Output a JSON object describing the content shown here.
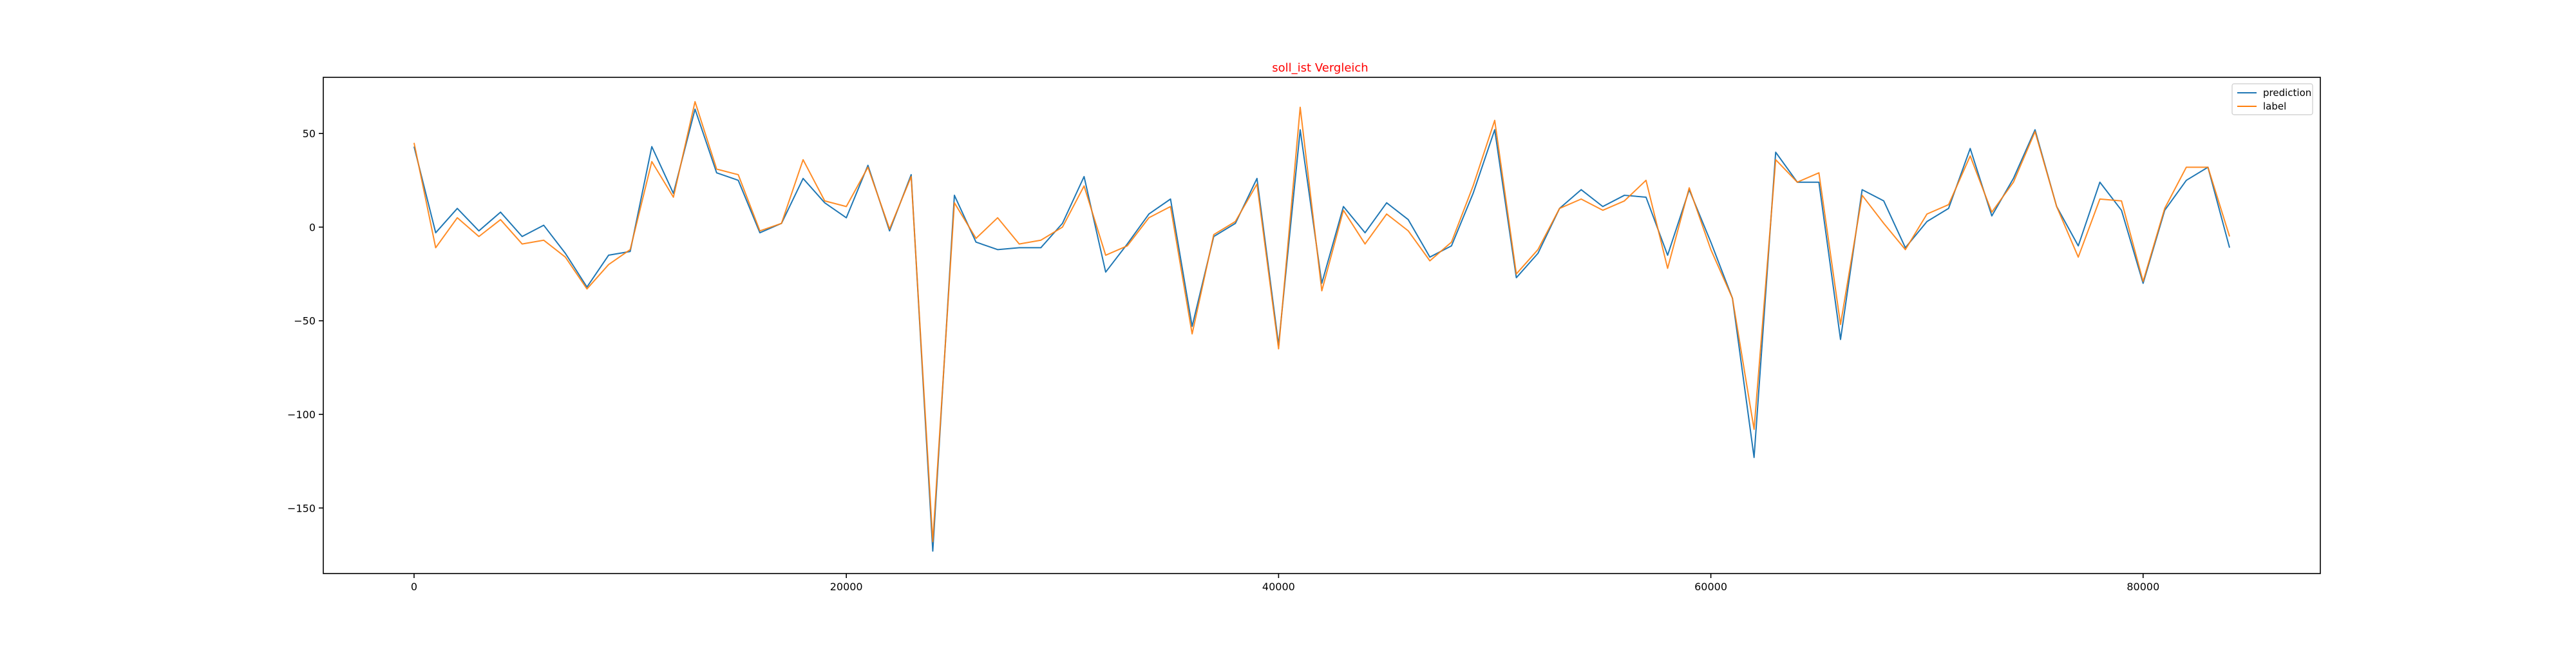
{
  "chart_data": {
    "type": "line",
    "title": "soll_ist Vergleich",
    "title_color": "#ff0000",
    "xlabel": "",
    "ylabel": "",
    "xlim": [
      -4200,
      88200
    ],
    "ylim": [
      -185,
      80
    ],
    "xticks": [
      0,
      20000,
      40000,
      60000,
      80000
    ],
    "yticks": [
      50,
      0,
      -50,
      -100,
      -150
    ],
    "ytick_labels": [
      "50",
      "0",
      "−50",
      "−100",
      "−150"
    ],
    "grid": false,
    "legend_position": "top-right",
    "x": [
      0,
      1000,
      2000,
      3000,
      4000,
      5000,
      6000,
      7000,
      8000,
      9000,
      10000,
      11000,
      12000,
      13000,
      14000,
      15000,
      16000,
      17000,
      18000,
      19000,
      20000,
      21000,
      22000,
      23000,
      24000,
      25000,
      26000,
      27000,
      28000,
      29000,
      30000,
      31000,
      32000,
      33000,
      34000,
      35000,
      36000,
      37000,
      38000,
      39000,
      40000,
      41000,
      42000,
      43000,
      44000,
      45000,
      46000,
      47000,
      48000,
      49000,
      50000,
      51000,
      52000,
      53000,
      54000,
      55000,
      56000,
      57000,
      58000,
      59000,
      60000,
      61000,
      62000,
      63000,
      64000,
      65000,
      66000,
      67000,
      68000,
      69000,
      70000,
      71000,
      72000,
      73000,
      74000,
      75000,
      76000,
      77000,
      78000,
      79000,
      80000,
      81000,
      82000,
      83000,
      84000
    ],
    "series": [
      {
        "name": "prediction",
        "color": "#1f77b4",
        "values": [
          43,
          -3,
          10,
          -2,
          8,
          -5,
          1,
          -14,
          -32,
          -15,
          -13,
          43,
          18,
          63,
          29,
          25,
          -3,
          2,
          26,
          13,
          5,
          33,
          -2,
          28,
          -173,
          17,
          -8,
          -12,
          -11,
          -11,
          2,
          27,
          -24,
          -9,
          7,
          15,
          -53,
          -5,
          2,
          26,
          -63,
          52,
          -30,
          11,
          -3,
          13,
          4,
          -16,
          -10,
          18,
          52,
          -27,
          -14,
          10,
          20,
          11,
          17,
          16,
          -15,
          20,
          -8,
          -38,
          -123,
          40,
          24,
          24,
          -60,
          20,
          14,
          -11,
          3,
          10,
          42,
          6,
          26,
          52,
          11,
          -10,
          24,
          9,
          -30,
          9,
          25,
          32,
          -11
        ]
      },
      {
        "name": "label",
        "color": "#ff7f0e",
        "values": [
          45,
          -11,
          5,
          -5,
          4,
          -9,
          -7,
          -16,
          -33,
          -20,
          -12,
          35,
          16,
          67,
          31,
          28,
          -2,
          2,
          36,
          14,
          11,
          32,
          -1,
          27,
          -168,
          13,
          -6,
          5,
          -9,
          -7,
          0,
          22,
          -15,
          -10,
          5,
          11,
          -57,
          -4,
          3,
          23,
          -65,
          64,
          -34,
          9,
          -9,
          7,
          -2,
          -18,
          -8,
          22,
          57,
          -25,
          -12,
          10,
          15,
          9,
          14,
          25,
          -22,
          21,
          -12,
          -38,
          -108,
          36,
          24,
          29,
          -52,
          17,
          2,
          -12,
          7,
          12,
          38,
          8,
          24,
          51,
          11,
          -16,
          15,
          14,
          -29,
          10,
          32,
          32,
          -5
        ]
      }
    ]
  }
}
